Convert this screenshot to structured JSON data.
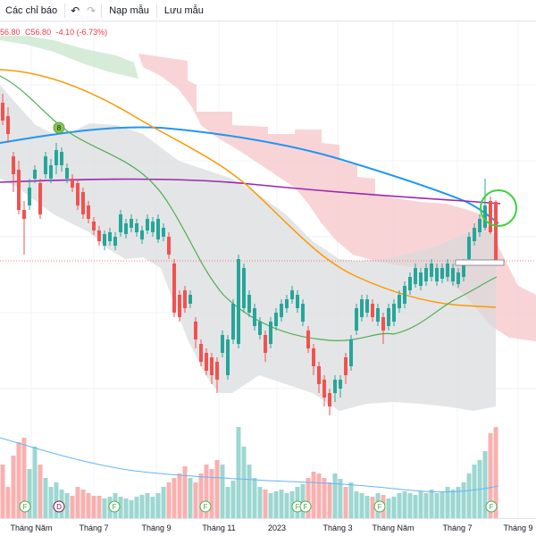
{
  "toolbar": {
    "indicators_label": "Các chỉ báo",
    "undo_icon": "undo-icon",
    "redo_icon": "redo-icon",
    "template_label": "Nạp mẫu",
    "save_template_label": "Lưu mẫu"
  },
  "legend": {
    "low": "56.80",
    "close": "C56.80",
    "change": "-4.10 (-6.73%)"
  },
  "colors": {
    "up": "#26a69a",
    "down": "#ef5350",
    "ma_blue": "#2196f3",
    "ma_purple": "#9c27b0",
    "ma_orange": "#ff9800",
    "ma_green": "#4caf50",
    "cloud_red": "#f7c6c9",
    "cloud_green": "#c9e4cc",
    "band_gray": "#d9dadc"
  },
  "markers": {
    "earnings_label": "8",
    "dividend_label": "D",
    "split_label": "F"
  },
  "xaxis": {
    "ticks": [
      "Tháng Năm",
      "Tháng 7",
      "Tháng 9",
      "Tháng 11",
      "2023",
      "Tháng 3",
      "Tháng Năm",
      "Tháng 7",
      "Tháng 9"
    ]
  },
  "chart_data": {
    "type": "candlestick",
    "title": "",
    "xlabel": "",
    "ylabel": "",
    "last_close": 56.8,
    "change": -4.1,
    "change_pct": -6.73
  }
}
